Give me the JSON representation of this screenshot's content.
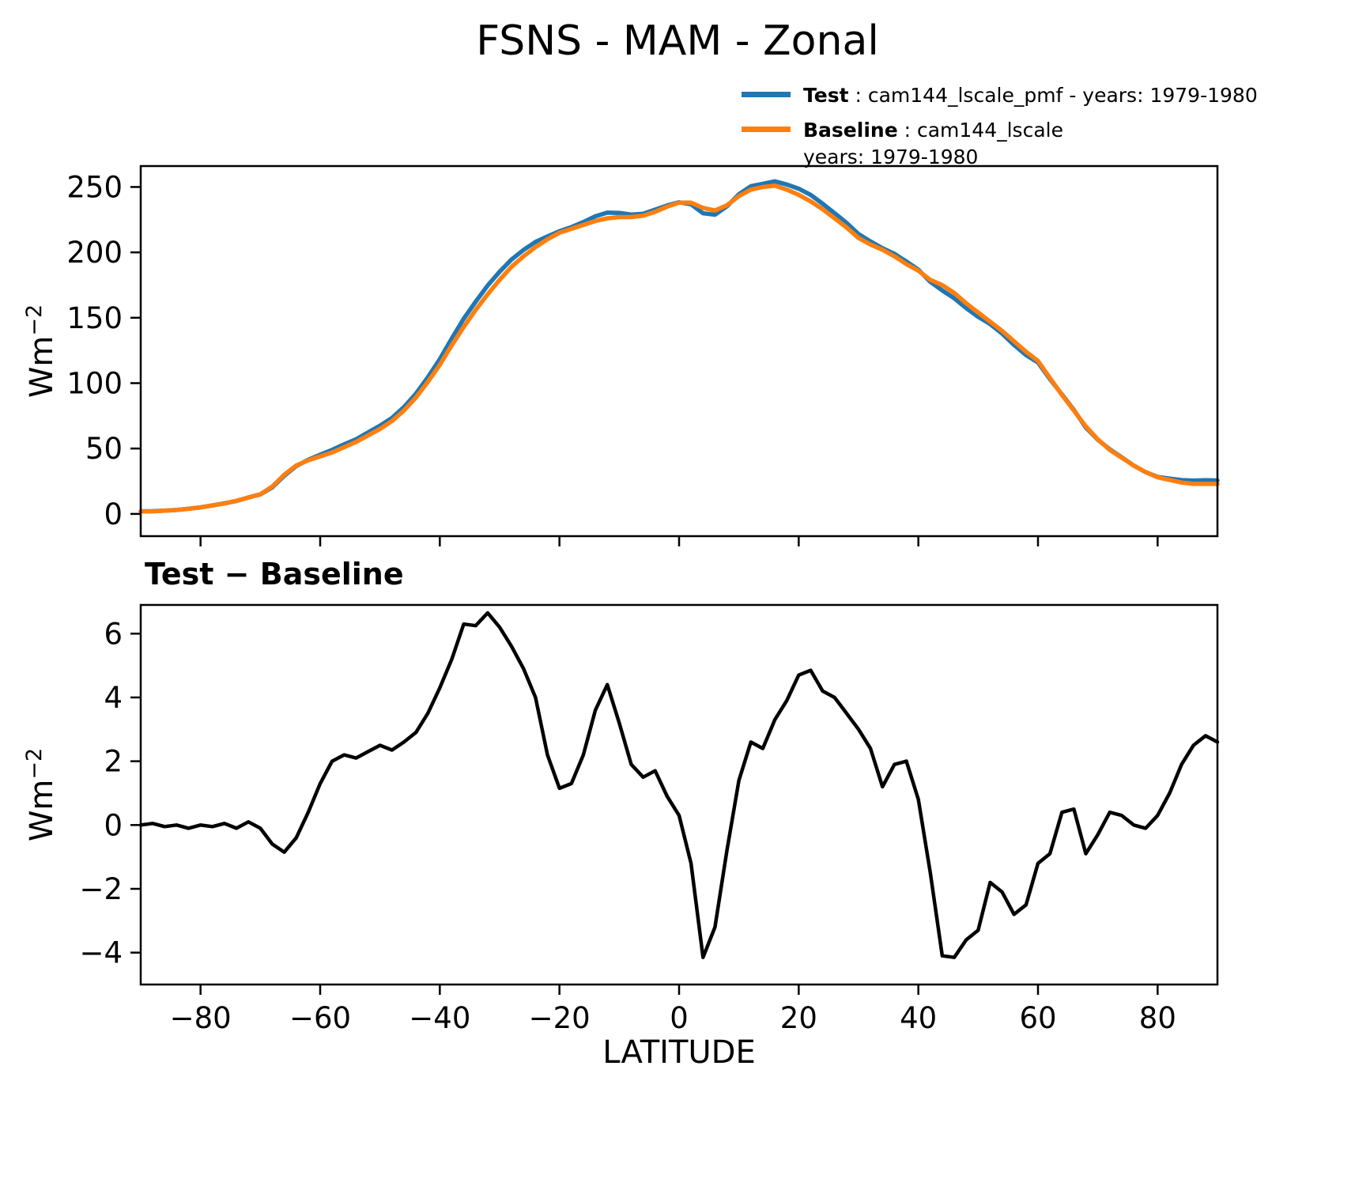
{
  "title": "FSNS - MAM - Zonal",
  "legend": {
    "items": [
      {
        "name": "Test",
        "text": " : cam144_lscale_pmf - years: 1979-1980",
        "line2": "",
        "color": "#1f77b4"
      },
      {
        "name": "Baseline",
        "text": " : cam144_lscale",
        "line2": "years: 1979-1980",
        "color": "#ff7f0e"
      }
    ]
  },
  "labels": {
    "diff_title": "Test − Baseline",
    "xlabel": "LATITUDE",
    "ylabel_base": "Wm",
    "ylabel_sup": "−2"
  },
  "chart_data": [
    {
      "type": "line",
      "title": "FSNS - MAM - Zonal",
      "xlabel": "",
      "ylabel": "Wm−2",
      "xlim": [
        -90,
        90
      ],
      "ylim": [
        -17,
        266
      ],
      "xticks": [
        -80,
        -60,
        -40,
        -20,
        0,
        20,
        40,
        60,
        80
      ],
      "yticks": [
        0,
        50,
        100,
        150,
        200,
        250
      ],
      "grid": false,
      "legend_position": "upper right, outside axes",
      "x": [
        -90,
        -88,
        -86,
        -84,
        -82,
        -80,
        -78,
        -76,
        -74,
        -72,
        -70,
        -68,
        -66,
        -64,
        -62,
        -60,
        -58,
        -56,
        -54,
        -52,
        -50,
        -48,
        -46,
        -44,
        -42,
        -40,
        -38,
        -36,
        -34,
        -32,
        -30,
        -28,
        -26,
        -24,
        -22,
        -20,
        -18,
        -16,
        -14,
        -12,
        -10,
        -8,
        -6,
        -4,
        -2,
        0,
        2,
        4,
        6,
        8,
        10,
        12,
        14,
        16,
        18,
        20,
        22,
        24,
        26,
        28,
        30,
        32,
        34,
        36,
        38,
        40,
        42,
        44,
        46,
        48,
        50,
        52,
        54,
        56,
        58,
        60,
        62,
        64,
        66,
        68,
        70,
        72,
        74,
        76,
        78,
        80,
        82,
        84,
        86,
        88,
        90
      ],
      "series": [
        {
          "key": "test",
          "name": "Test : cam144_lscale_pmf - years: 1979-1980",
          "color": "#1f77b4",
          "values": [
            2,
            2.1,
            2.5,
            3,
            3.9,
            5,
            6.5,
            8.1,
            9.9,
            12.6,
            14.9,
            20.4,
            29.2,
            36.6,
            41.4,
            45.3,
            49,
            53.2,
            57.1,
            62.3,
            67.5,
            73.4,
            81.6,
            91.9,
            104.5,
            118.3,
            134.2,
            149.3,
            162.3,
            174.7,
            185.2,
            194.6,
            201.9,
            208,
            212.2,
            216.2,
            219.3,
            223.2,
            227.6,
            230.4,
            230.2,
            228.9,
            229.5,
            232.7,
            235.9,
            238.3,
            236.8,
            229.9,
            228.8,
            235.2,
            244.4,
            250.6,
            252.4,
            254.3,
            251.9,
            248.7,
            243.9,
            237.2,
            230,
            222.5,
            214,
            208.4,
            203.2,
            198.9,
            193,
            186.8,
            177.5,
            170.9,
            164.9,
            157.4,
            150.7,
            145.2,
            137.9,
            129.2,
            121.5,
            115.8,
            103.1,
            91.4,
            79.5,
            66.1,
            56.7,
            49.4,
            43.3,
            37,
            31.9,
            28.3,
            27,
            25.9,
            25.5,
            25.8,
            25.6
          ]
        },
        {
          "key": "baseline",
          "name": "Baseline : cam144_lscale - years: 1979-1980",
          "color": "#ff7f0e",
          "values": [
            2,
            2,
            2.5,
            3,
            4,
            5,
            6.5,
            8,
            10,
            12.5,
            15,
            21,
            30,
            37,
            41,
            44,
            47,
            51,
            55,
            60,
            65,
            71,
            79,
            89,
            101,
            114,
            129,
            143,
            156,
            168,
            179,
            189,
            197,
            204,
            210,
            215,
            218,
            221,
            224,
            226,
            227,
            227,
            228,
            231,
            235,
            238,
            238,
            234,
            232,
            236,
            243,
            248,
            250,
            251,
            248,
            244,
            239,
            233,
            226,
            219,
            211,
            206,
            202,
            197,
            191,
            186,
            179,
            175,
            169,
            161,
            154,
            147,
            140,
            132,
            124,
            117,
            104,
            91,
            79,
            67,
            57,
            49,
            43,
            37,
            32,
            28,
            26,
            24,
            23,
            23,
            23
          ]
        }
      ]
    },
    {
      "type": "line",
      "title": "Test − Baseline",
      "xlabel": "LATITUDE",
      "ylabel": "Wm−2",
      "xlim": [
        -90,
        90
      ],
      "ylim": [
        -5.0,
        6.9
      ],
      "xticks": [
        -80,
        -60,
        -40,
        -20,
        0,
        20,
        40,
        60,
        80
      ],
      "yticks": [
        -4,
        -2,
        0,
        2,
        4,
        6
      ],
      "grid": false,
      "x": [
        -90,
        -88,
        -86,
        -84,
        -82,
        -80,
        -78,
        -76,
        -74,
        -72,
        -70,
        -68,
        -66,
        -64,
        -62,
        -60,
        -58,
        -56,
        -54,
        -52,
        -50,
        -48,
        -46,
        -44,
        -42,
        -40,
        -38,
        -36,
        -34,
        -32,
        -30,
        -28,
        -26,
        -24,
        -22,
        -20,
        -18,
        -16,
        -14,
        -12,
        -10,
        -8,
        -6,
        -4,
        -2,
        0,
        2,
        4,
        6,
        8,
        10,
        12,
        14,
        16,
        18,
        20,
        22,
        24,
        26,
        28,
        30,
        32,
        34,
        36,
        38,
        40,
        42,
        44,
        46,
        48,
        50,
        52,
        54,
        56,
        58,
        60,
        62,
        64,
        66,
        68,
        70,
        72,
        74,
        76,
        78,
        80,
        82,
        84,
        86,
        88,
        90
      ],
      "series": [
        {
          "key": "diff",
          "name": "Test − Baseline",
          "color": "#000000",
          "values": [
            0,
            0.05,
            -0.05,
            0,
            -0.1,
            0,
            -0.05,
            0.05,
            -0.1,
            0.1,
            -0.1,
            -0.6,
            -0.85,
            -0.4,
            0.4,
            1.3,
            2,
            2.2,
            2.1,
            2.3,
            2.5,
            2.35,
            2.6,
            2.9,
            3.5,
            4.3,
            5.2,
            6.3,
            6.25,
            6.65,
            6.2,
            5.6,
            4.9,
            4,
            2.2,
            1.15,
            1.3,
            2.2,
            3.6,
            4.4,
            3.2,
            1.9,
            1.5,
            1.7,
            0.9,
            0.3,
            -1.2,
            -4.15,
            -3.2,
            -0.8,
            1.4,
            2.6,
            2.4,
            3.3,
            3.9,
            4.7,
            4.85,
            4.2,
            4,
            3.5,
            3,
            2.4,
            1.2,
            1.9,
            2,
            0.8,
            -1.5,
            -4.1,
            -4.15,
            -3.6,
            -3.3,
            -1.8,
            -2.1,
            -2.8,
            -2.5,
            -1.2,
            -0.9,
            0.4,
            0.5,
            -0.9,
            -0.3,
            0.4,
            0.3,
            0,
            -0.1,
            0.3,
            1,
            1.9,
            2.5,
            2.8,
            2.6
          ]
        }
      ]
    }
  ]
}
